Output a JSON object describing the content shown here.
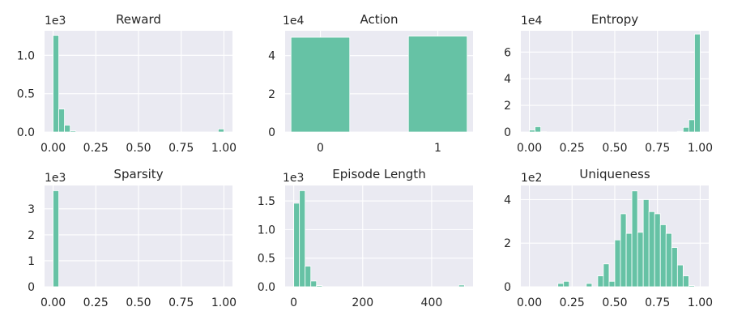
{
  "colors": {
    "bar": "#66c2a5",
    "panel_bg": "#eaeaf2",
    "grid": "#ffffff",
    "text": "#262626"
  },
  "chart_data": [
    {
      "type": "bar",
      "title": "Reward",
      "xlim": [
        -0.05,
        1.05
      ],
      "ylim": [
        0,
        1.32
      ],
      "grid": true,
      "y_multiplier": "1e3",
      "x_ticks": [
        0,
        0.25,
        0.5,
        0.75,
        1.0
      ],
      "x_tick_labels": [
        "0.00",
        "0.25",
        "0.50",
        "0.75",
        "1.00"
      ],
      "y_ticks": [
        0,
        0.5,
        1.0
      ],
      "y_tick_labels": [
        "0.0",
        "0.5",
        "1.0"
      ],
      "bin_width": 0.0333,
      "bins": [
        {
          "x": 0.0,
          "value": 1.26
        },
        {
          "x": 0.0333,
          "value": 0.3
        },
        {
          "x": 0.0667,
          "value": 0.09
        },
        {
          "x": 0.1,
          "value": 0.015
        },
        {
          "x": 0.9667,
          "value": 0.04
        }
      ]
    },
    {
      "type": "bar",
      "title": "Action",
      "xlim": [
        -0.3,
        1.3
      ],
      "ylim": [
        0,
        5.3
      ],
      "grid": true,
      "y_multiplier": "1e4",
      "x_ticks": [
        0,
        1
      ],
      "x_tick_labels": [
        "0",
        "1"
      ],
      "y_ticks": [
        0,
        2,
        4
      ],
      "y_tick_labels": [
        "0",
        "2",
        "4"
      ],
      "bin_width": 0.5,
      "bins": [
        {
          "x": -0.25,
          "value": 4.96
        },
        {
          "x": 0.75,
          "value": 5.02
        }
      ]
    },
    {
      "type": "bar",
      "title": "Entropy",
      "xlim": [
        -0.05,
        1.05
      ],
      "ylim": [
        0,
        7.6
      ],
      "grid": true,
      "y_multiplier": "1e4",
      "x_ticks": [
        0,
        0.25,
        0.5,
        0.75,
        1.0
      ],
      "x_tick_labels": [
        "0.00",
        "0.25",
        "0.50",
        "0.75",
        "1.00"
      ],
      "y_ticks": [
        0,
        2,
        4,
        6
      ],
      "y_tick_labels": [
        "0",
        "2",
        "4",
        "6"
      ],
      "bin_width": 0.0333,
      "bins": [
        {
          "x": 0.0,
          "value": 0.15
        },
        {
          "x": 0.0333,
          "value": 0.4
        },
        {
          "x": 0.0667,
          "value": 0.02
        },
        {
          "x": 0.8667,
          "value": 0.05
        },
        {
          "x": 0.9,
          "value": 0.35
        },
        {
          "x": 0.9333,
          "value": 0.92
        },
        {
          "x": 0.9667,
          "value": 7.35
        }
      ]
    },
    {
      "type": "bar",
      "title": "Sparsity",
      "xlim": [
        -0.05,
        1.05
      ],
      "ylim": [
        0,
        3.9
      ],
      "grid": true,
      "y_multiplier": "1e3",
      "x_ticks": [
        0,
        0.25,
        0.5,
        0.75,
        1.0
      ],
      "x_tick_labels": [
        "0.00",
        "0.25",
        "0.50",
        "0.75",
        "1.00"
      ],
      "y_ticks": [
        0,
        1,
        2,
        3
      ],
      "y_tick_labels": [
        "0",
        "1",
        "2",
        "3"
      ],
      "bin_width": 0.0333,
      "bins": [
        {
          "x": 0.0,
          "value": 3.7
        }
      ]
    },
    {
      "type": "bar",
      "title": "Episode Length",
      "xlim": [
        -25,
        520
      ],
      "ylim": [
        0,
        1.77
      ],
      "grid": true,
      "y_multiplier": "1e3",
      "x_ticks": [
        0,
        200,
        400
      ],
      "x_tick_labels": [
        "0",
        "200",
        "400"
      ],
      "y_ticks": [
        0,
        0.5,
        1.0,
        1.5
      ],
      "y_tick_labels": [
        "0.0",
        "0.5",
        "1.0",
        "1.5"
      ],
      "bin_width": 16.5,
      "bins": [
        {
          "x": 0,
          "value": 1.46
        },
        {
          "x": 16.5,
          "value": 1.68
        },
        {
          "x": 33,
          "value": 0.36
        },
        {
          "x": 49.5,
          "value": 0.1
        },
        {
          "x": 66,
          "value": 0.02
        },
        {
          "x": 478.5,
          "value": 0.03
        }
      ]
    },
    {
      "type": "bar",
      "title": "Uniqueness",
      "xlim": [
        -0.05,
        1.05
      ],
      "ylim": [
        0,
        4.65
      ],
      "grid": true,
      "y_multiplier": "1e2",
      "x_ticks": [
        0,
        0.25,
        0.5,
        0.75,
        1.0
      ],
      "x_tick_labels": [
        "0.00",
        "0.25",
        "0.50",
        "0.75",
        "1.00"
      ],
      "y_ticks": [
        0,
        2,
        4
      ],
      "y_tick_labels": [
        "0",
        "2",
        "4"
      ],
      "bin_width": 0.0333,
      "bins": [
        {
          "x": 0.1667,
          "value": 0.15
        },
        {
          "x": 0.2,
          "value": 0.25
        },
        {
          "x": 0.3333,
          "value": 0.15
        },
        {
          "x": 0.4,
          "value": 0.5
        },
        {
          "x": 0.4333,
          "value": 1.05
        },
        {
          "x": 0.4667,
          "value": 0.25
        },
        {
          "x": 0.5,
          "value": 2.15
        },
        {
          "x": 0.5333,
          "value": 3.35
        },
        {
          "x": 0.5667,
          "value": 2.45
        },
        {
          "x": 0.6,
          "value": 4.4
        },
        {
          "x": 0.6333,
          "value": 2.5
        },
        {
          "x": 0.6667,
          "value": 4.0
        },
        {
          "x": 0.7,
          "value": 3.45
        },
        {
          "x": 0.7333,
          "value": 3.35
        },
        {
          "x": 0.7667,
          "value": 2.85
        },
        {
          "x": 0.8,
          "value": 2.45
        },
        {
          "x": 0.8333,
          "value": 1.8
        },
        {
          "x": 0.8667,
          "value": 1.0
        },
        {
          "x": 0.9,
          "value": 0.5
        },
        {
          "x": 0.9333,
          "value": 0.05
        }
      ]
    }
  ]
}
